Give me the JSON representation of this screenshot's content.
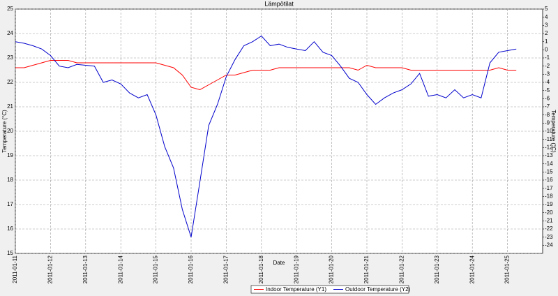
{
  "chart_data": {
    "type": "line",
    "title": "Lämpötilat",
    "x_label": "Date",
    "y_label": "Temperature (°C)",
    "y2_label": "Temperature (°C)",
    "x": [
      "2011-01-11 00:00",
      "2011-01-11 06:00",
      "2011-01-11 12:00",
      "2011-01-11 18:00",
      "2011-01-12 00:00",
      "2011-01-12 06:00",
      "2011-01-12 12:00",
      "2011-01-12 18:00",
      "2011-01-13 00:00",
      "2011-01-13 06:00",
      "2011-01-13 12:00",
      "2011-01-13 18:00",
      "2011-01-14 00:00",
      "2011-01-14 06:00",
      "2011-01-14 12:00",
      "2011-01-14 18:00",
      "2011-01-15 00:00",
      "2011-01-15 06:00",
      "2011-01-15 12:00",
      "2011-01-15 18:00",
      "2011-01-16 00:00",
      "2011-01-16 06:00",
      "2011-01-16 12:00",
      "2011-01-16 18:00",
      "2011-01-17 00:00",
      "2011-01-17 06:00",
      "2011-01-17 12:00",
      "2011-01-17 18:00",
      "2011-01-18 00:00",
      "2011-01-18 06:00",
      "2011-01-18 12:00",
      "2011-01-18 18:00",
      "2011-01-19 00:00",
      "2011-01-19 06:00",
      "2011-01-19 12:00",
      "2011-01-19 18:00",
      "2011-01-20 00:00",
      "2011-01-20 06:00",
      "2011-01-20 12:00",
      "2011-01-20 18:00",
      "2011-01-21 00:00",
      "2011-01-21 06:00",
      "2011-01-21 12:00",
      "2011-01-21 18:00",
      "2011-01-22 00:00",
      "2011-01-22 06:00",
      "2011-01-22 12:00",
      "2011-01-22 18:00",
      "2011-01-23 00:00",
      "2011-01-23 06:00",
      "2011-01-23 12:00",
      "2011-01-23 18:00",
      "2011-01-24 00:00",
      "2011-01-24 06:00",
      "2011-01-24 12:00",
      "2011-01-24 18:00",
      "2011-01-25 00:00",
      "2011-01-25 06:00"
    ],
    "series": [
      {
        "name": "Indoor Temperature (Y1)",
        "color": "#ff0000",
        "axis": "y",
        "values": [
          22.6,
          22.6,
          22.7,
          22.8,
          22.9,
          22.9,
          22.9,
          22.8,
          22.8,
          22.8,
          22.8,
          22.8,
          22.8,
          22.8,
          22.8,
          22.8,
          22.8,
          22.7,
          22.6,
          22.3,
          21.8,
          21.7,
          21.9,
          22.1,
          22.3,
          22.3,
          22.4,
          22.5,
          22.5,
          22.5,
          22.6,
          22.6,
          22.6,
          22.6,
          22.6,
          22.6,
          22.6,
          22.6,
          22.6,
          22.5,
          22.7,
          22.6,
          22.6,
          22.6,
          22.6,
          22.5,
          22.5,
          22.5,
          22.5,
          22.5,
          22.5,
          22.5,
          22.5,
          22.5,
          22.5,
          22.6,
          22.5,
          22.5
        ]
      },
      {
        "name": "Outdoor Temperature (Y2)",
        "color": "#0000cc",
        "axis": "y2",
        "values": [
          1.0,
          0.8,
          0.5,
          0.1,
          -0.7,
          -2.0,
          -2.2,
          -1.8,
          -1.9,
          -2.0,
          -4.0,
          -3.7,
          -4.2,
          -5.3,
          -5.9,
          -5.5,
          -8.0,
          -11.9,
          -14.5,
          -19.6,
          -23.0,
          -16.2,
          -9.3,
          -6.7,
          -3.3,
          -1.2,
          0.5,
          1.0,
          1.7,
          0.5,
          0.7,
          0.3,
          0.1,
          -0.1,
          1.0,
          -0.3,
          -0.7,
          -2.0,
          -3.5,
          -4.0,
          -5.5,
          -6.7,
          -5.9,
          -5.3,
          -4.9,
          -4.2,
          -2.9,
          -5.7,
          -5.5,
          -5.9,
          -4.9,
          -5.9,
          -5.5,
          -5.9,
          -1.6,
          -0.3,
          -0.1,
          0.1
        ]
      }
    ],
    "xlim": [
      "2011-01-11",
      "2011-01-26"
    ],
    "xticks": [
      "2011-01-11",
      "2011-01-12",
      "2011-01-13",
      "2011-01-14",
      "2011-01-15",
      "2011-01-16",
      "2011-01-17",
      "2011-01-18",
      "2011-01-19",
      "2011-01-20",
      "2011-01-21",
      "2011-01-22",
      "2011-01-23",
      "2011-01-24",
      "2011-01-25"
    ],
    "ylim": [
      15,
      25
    ],
    "yticks": [
      15,
      16,
      17,
      18,
      19,
      20,
      21,
      22,
      23,
      24,
      25
    ],
    "y2lim": [
      -25,
      5
    ],
    "y2ticks": [
      5,
      4,
      3,
      2,
      1,
      0,
      -1,
      -2,
      -3,
      -4,
      -5,
      -6,
      -7,
      -8,
      -9,
      -10,
      -11,
      -12,
      -13,
      -14,
      -15,
      -16,
      -17,
      -18,
      -19,
      -20,
      -21,
      -22,
      -23,
      -24
    ],
    "grid": true,
    "legend": "bottom"
  }
}
